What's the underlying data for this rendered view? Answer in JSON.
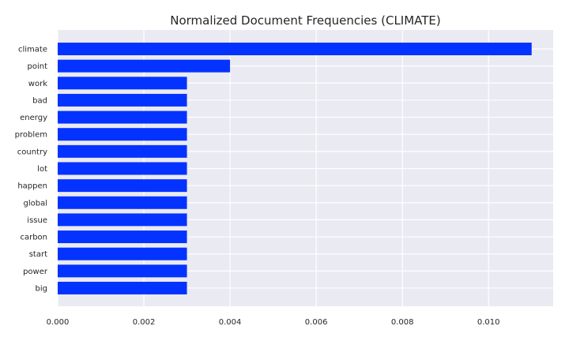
{
  "chart_data": {
    "type": "bar",
    "orientation": "horizontal",
    "title": "Normalized Document Frequencies (CLIMATE)",
    "xlabel": "",
    "ylabel": "",
    "categories": [
      "climate",
      "point",
      "work",
      "bad",
      "energy",
      "problem",
      "country",
      "lot",
      "happen",
      "global",
      "issue",
      "carbon",
      "start",
      "power",
      "big"
    ],
    "values": [
      0.011,
      0.004,
      0.003,
      0.003,
      0.003,
      0.003,
      0.003,
      0.003,
      0.003,
      0.003,
      0.003,
      0.003,
      0.003,
      0.003,
      0.003
    ],
    "xlim": [
      0,
      0.0115
    ],
    "xticks": [
      0.0,
      0.002,
      0.004,
      0.006,
      0.008,
      0.01
    ],
    "xtick_labels": [
      "0.000",
      "0.002",
      "0.004",
      "0.006",
      "0.008",
      "0.010"
    ],
    "grid": true,
    "colors": {
      "bar": "#0433ff",
      "plot_background": "#eaeaf2",
      "grid": "#ffffff",
      "text": "#262626"
    }
  }
}
